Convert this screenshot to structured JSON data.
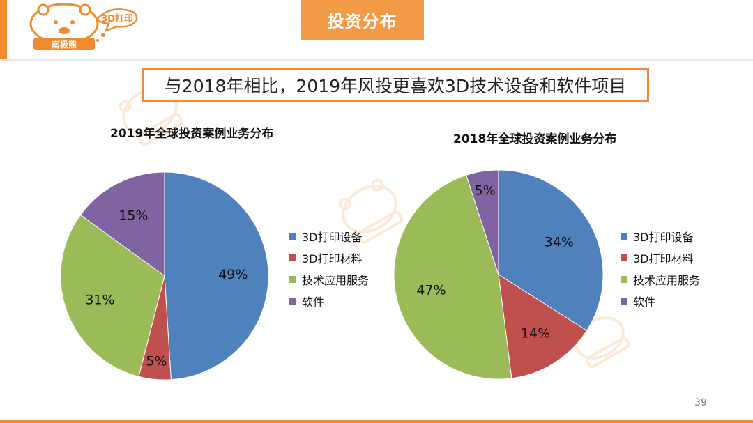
{
  "logo": {
    "badge": "3D打印",
    "name": "南极熊"
  },
  "header": {
    "title": "投资分布"
  },
  "subtitle": "与2018年相比，2019年风投更喜欢3D技术设备和软件项目",
  "colors": {
    "accent": "#f28a2e",
    "series": [
      "#4f81bd",
      "#c0504d",
      "#9bbb59",
      "#8064a2"
    ]
  },
  "chart_data": [
    {
      "type": "pie",
      "title": "2019年全球投资案例业务分布",
      "categories": [
        "3D打印设备",
        "3D打印材料",
        "技术应用服务",
        "软件"
      ],
      "values": [
        49,
        5,
        31,
        15
      ],
      "labels": [
        "49%",
        "5%",
        "31%",
        "15%"
      ],
      "legend": "right"
    },
    {
      "type": "pie",
      "title": "2018年全球投资案例业务分布",
      "categories": [
        "3D打印设备",
        "3D打印材料",
        "技术应用服务",
        "软件"
      ],
      "values": [
        34,
        14,
        47,
        5
      ],
      "labels": [
        "34%",
        "14%",
        "47%",
        "5%"
      ],
      "legend": "right"
    }
  ],
  "page_number": "39"
}
